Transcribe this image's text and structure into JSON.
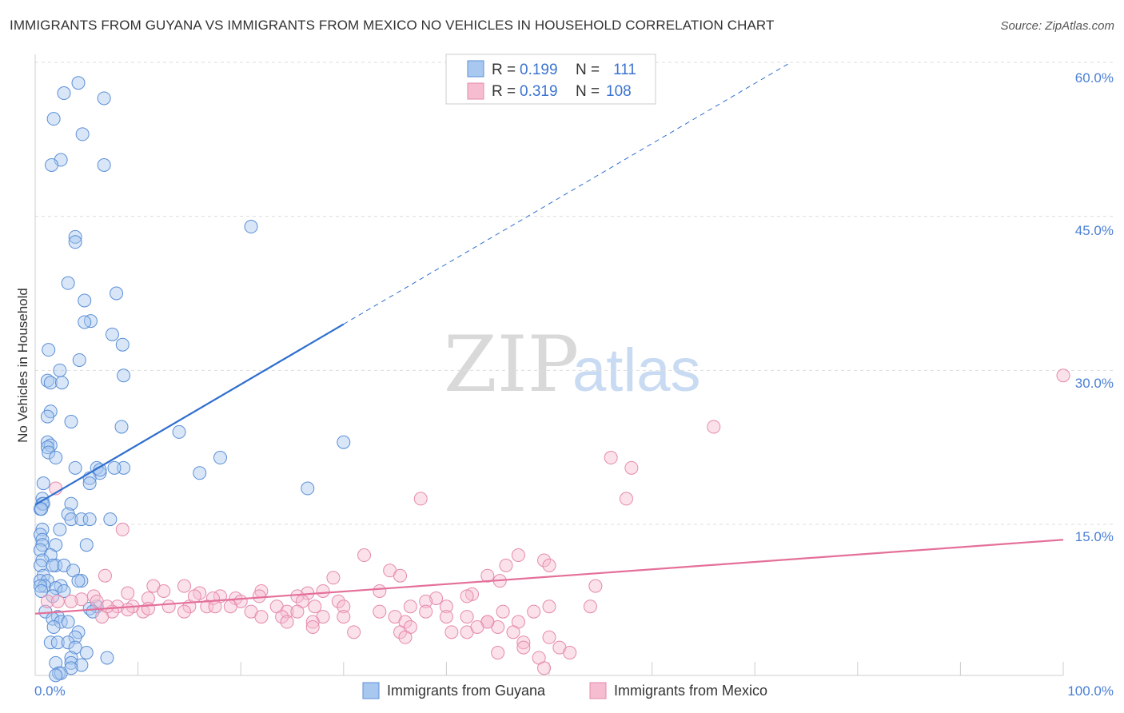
{
  "title": "IMMIGRANTS FROM GUYANA VS IMMIGRANTS FROM MEXICO NO VEHICLES IN HOUSEHOLD CORRELATION CHART",
  "source": "Source: ZipAtlas.com",
  "watermark": {
    "zip": "ZIP",
    "atlas": "atlas"
  },
  "colors": {
    "guyana_fill": "#a9c8f0",
    "guyana_stroke": "#5b8fd6",
    "guyana_line": "#2f6fcf",
    "mexico_fill": "#f6bcd0",
    "mexico_stroke": "#e58aab",
    "mexico_line": "#e4709a",
    "tick_label": "#4a7fd4",
    "grid": "#dddddd"
  },
  "legend": {
    "items": [
      {
        "r_label": "R = ",
        "r_value": "0.199",
        "n_label": "N = ",
        "n_value": "111",
        "series": "guyana"
      },
      {
        "r_label": "R = ",
        "r_value": "0.319",
        "n_label": "N = ",
        "n_value": "108",
        "series": "mexico"
      }
    ]
  },
  "bottom_legend": [
    "Immigrants from Guyana",
    "Immigrants from Mexico"
  ],
  "chart_data": {
    "type": "scatter",
    "title": "IMMIGRANTS FROM GUYANA VS IMMIGRANTS FROM MEXICO NO VEHICLES IN HOUSEHOLD CORRELATION CHART",
    "xlabel": "",
    "ylabel": "No Vehicles in Household",
    "xlim": [
      0,
      100
    ],
    "ylim": [
      0,
      61.5
    ],
    "x_tick_labels": [
      "0.0%",
      "100.0%"
    ],
    "y_ticks": [
      15,
      30,
      45,
      60
    ],
    "y_tick_labels": [
      "15.0%",
      "30.0%",
      "45.0%",
      "60.0%"
    ],
    "grid": true,
    "legend_position": "top-center",
    "series": [
      {
        "name": "Immigrants from Guyana",
        "color": "#a9c8f0",
        "trend": {
          "x": [
            0,
            30
          ],
          "y": [
            16.9,
            34.5
          ],
          "dashed_extension_to": [
            73.5,
            60
          ]
        },
        "points": [
          [
            4.2,
            58.0
          ],
          [
            2.8,
            57.0
          ],
          [
            6.7,
            56.5
          ],
          [
            1.8,
            54.5
          ],
          [
            4.6,
            53.0
          ],
          [
            2.5,
            50.5
          ],
          [
            1.6,
            50.0
          ],
          [
            6.7,
            50.0
          ],
          [
            21.0,
            44.0
          ],
          [
            3.9,
            43.0
          ],
          [
            3.9,
            42.5
          ],
          [
            3.2,
            38.5
          ],
          [
            7.9,
            37.5
          ],
          [
            4.8,
            36.8
          ],
          [
            5.4,
            34.8
          ],
          [
            4.8,
            34.7
          ],
          [
            7.5,
            33.5
          ],
          [
            8.5,
            32.5
          ],
          [
            1.3,
            32.0
          ],
          [
            4.3,
            31.0
          ],
          [
            2.4,
            30.0
          ],
          [
            8.6,
            29.5
          ],
          [
            1.2,
            29.0
          ],
          [
            1.5,
            28.8
          ],
          [
            2.6,
            28.8
          ],
          [
            1.5,
            26.0
          ],
          [
            1.2,
            25.5
          ],
          [
            3.5,
            25.0
          ],
          [
            8.4,
            24.5
          ],
          [
            14.0,
            24.0
          ],
          [
            30.0,
            23.0
          ],
          [
            1.2,
            23.0
          ],
          [
            1.5,
            22.7
          ],
          [
            1.2,
            22.5
          ],
          [
            1.3,
            22.0
          ],
          [
            2.0,
            21.5
          ],
          [
            18.0,
            21.5
          ],
          [
            3.9,
            20.5
          ],
          [
            6.0,
            20.5
          ],
          [
            6.3,
            20.0
          ],
          [
            8.6,
            20.5
          ],
          [
            7.7,
            20.5
          ],
          [
            6.3,
            20.3
          ],
          [
            16.0,
            20.0
          ],
          [
            5.3,
            19.5
          ],
          [
            5.3,
            19.0
          ],
          [
            0.8,
            19.0
          ],
          [
            26.5,
            18.5
          ],
          [
            0.7,
            17.5
          ],
          [
            0.7,
            17.0
          ],
          [
            0.8,
            17.0
          ],
          [
            3.5,
            17.0
          ],
          [
            0.5,
            16.5
          ],
          [
            0.6,
            16.5
          ],
          [
            3.2,
            16.0
          ],
          [
            3.5,
            15.5
          ],
          [
            4.5,
            15.5
          ],
          [
            7.3,
            15.5
          ],
          [
            5.3,
            15.5
          ],
          [
            0.7,
            14.5
          ],
          [
            2.4,
            14.5
          ],
          [
            0.5,
            14.0
          ],
          [
            0.7,
            13.5
          ],
          [
            2.0,
            13.0
          ],
          [
            0.7,
            13.0
          ],
          [
            5.0,
            13.0
          ],
          [
            0.5,
            12.5
          ],
          [
            1.5,
            12.0
          ],
          [
            0.7,
            11.5
          ],
          [
            2.0,
            11.0
          ],
          [
            1.7,
            11.0
          ],
          [
            2.8,
            11.0
          ],
          [
            0.5,
            11.0
          ],
          [
            3.7,
            10.5
          ],
          [
            0.8,
            10.0
          ],
          [
            0.5,
            9.5
          ],
          [
            1.2,
            9.5
          ],
          [
            4.5,
            9.5
          ],
          [
            4.2,
            9.5
          ],
          [
            2.5,
            9.0
          ],
          [
            0.9,
            9.0
          ],
          [
            0.5,
            9.0
          ],
          [
            2.0,
            8.8
          ],
          [
            2.8,
            8.5
          ],
          [
            0.6,
            8.5
          ],
          [
            1.7,
            8.0
          ],
          [
            6.0,
            7.0
          ],
          [
            5.3,
            6.8
          ],
          [
            1.0,
            6.5
          ],
          [
            5.6,
            6.5
          ],
          [
            2.2,
            6.0
          ],
          [
            1.7,
            5.8
          ],
          [
            2.5,
            5.5
          ],
          [
            3.2,
            5.5
          ],
          [
            1.8,
            5.0
          ],
          [
            4.2,
            4.5
          ],
          [
            3.9,
            4.0
          ],
          [
            1.5,
            3.5
          ],
          [
            2.2,
            3.5
          ],
          [
            3.2,
            3.5
          ],
          [
            3.9,
            3.0
          ],
          [
            5.0,
            2.5
          ],
          [
            3.5,
            2.0
          ],
          [
            7.0,
            2.0
          ],
          [
            2.0,
            1.5
          ],
          [
            3.5,
            1.5
          ],
          [
            4.5,
            1.3
          ],
          [
            3.5,
            1.0
          ],
          [
            2.3,
            0.5
          ],
          [
            2.5,
            0.5
          ],
          [
            2.0,
            0.3
          ]
        ]
      },
      {
        "name": "Immigrants from Mexico",
        "color": "#f6bcd0",
        "trend": {
          "x": [
            0,
            100
          ],
          "y": [
            6.3,
            13.5
          ]
        },
        "points": [
          [
            2.0,
            18.5
          ],
          [
            100.0,
            29.5
          ],
          [
            66.0,
            24.5
          ],
          [
            56.0,
            21.5
          ],
          [
            58.0,
            20.5
          ],
          [
            37.5,
            17.5
          ],
          [
            57.5,
            17.5
          ],
          [
            8.5,
            14.5
          ],
          [
            32.0,
            12.0
          ],
          [
            47.0,
            12.0
          ],
          [
            49.5,
            11.5
          ],
          [
            45.8,
            11.0
          ],
          [
            50.0,
            11.0
          ],
          [
            34.5,
            10.5
          ],
          [
            35.5,
            10.0
          ],
          [
            6.8,
            10.0
          ],
          [
            29.0,
            9.8
          ],
          [
            44.0,
            10.0
          ],
          [
            45.2,
            9.5
          ],
          [
            11.5,
            9.0
          ],
          [
            54.5,
            9.0
          ],
          [
            14.5,
            9.0
          ],
          [
            22.0,
            8.5
          ],
          [
            28.0,
            8.5
          ],
          [
            33.5,
            8.5
          ],
          [
            12.5,
            8.5
          ],
          [
            26.5,
            8.3
          ],
          [
            9.0,
            8.3
          ],
          [
            16.0,
            8.3
          ],
          [
            42.5,
            8.2
          ],
          [
            42.0,
            8.0
          ],
          [
            21.8,
            8.0
          ],
          [
            18.0,
            8.0
          ],
          [
            5.7,
            8.0
          ],
          [
            25.5,
            8.0
          ],
          [
            11.0,
            7.8
          ],
          [
            17.3,
            7.8
          ],
          [
            4.5,
            7.7
          ],
          [
            19.5,
            7.8
          ],
          [
            29.5,
            7.5
          ],
          [
            39.0,
            7.8
          ],
          [
            38.0,
            7.5
          ],
          [
            20.0,
            7.5
          ],
          [
            15.0,
            7.0
          ],
          [
            16.7,
            7.0
          ],
          [
            26.0,
            7.5
          ],
          [
            1.2,
            7.5
          ],
          [
            3.5,
            7.5
          ],
          [
            2.2,
            7.5
          ],
          [
            6.0,
            7.5
          ],
          [
            8.0,
            7.0
          ],
          [
            9.5,
            7.0
          ],
          [
            13.0,
            7.0
          ],
          [
            17.5,
            7.0
          ],
          [
            19.0,
            7.0
          ],
          [
            23.5,
            7.0
          ],
          [
            27.2,
            7.0
          ],
          [
            30.0,
            7.0
          ],
          [
            36.5,
            7.0
          ],
          [
            40.0,
            7.0
          ],
          [
            50.0,
            7.0
          ],
          [
            54.0,
            7.0
          ],
          [
            7.5,
            6.5
          ],
          [
            10.5,
            6.5
          ],
          [
            14.5,
            6.5
          ],
          [
            21.0,
            6.5
          ],
          [
            24.5,
            6.5
          ],
          [
            25.5,
            6.5
          ],
          [
            33.5,
            6.5
          ],
          [
            38.0,
            6.5
          ],
          [
            45.5,
            6.5
          ],
          [
            48.5,
            6.5
          ],
          [
            22.0,
            6.0
          ],
          [
            24.0,
            6.0
          ],
          [
            28.0,
            6.0
          ],
          [
            30.0,
            6.0
          ],
          [
            35.0,
            6.0
          ],
          [
            40.0,
            6.0
          ],
          [
            42.0,
            6.0
          ],
          [
            44.0,
            5.5
          ],
          [
            24.5,
            5.5
          ],
          [
            27.0,
            5.5
          ],
          [
            36.0,
            5.5
          ],
          [
            47.0,
            5.5
          ],
          [
            27.0,
            5.0
          ],
          [
            31.0,
            4.5
          ],
          [
            40.5,
            4.5
          ],
          [
            42.0,
            4.5
          ],
          [
            35.5,
            4.5
          ],
          [
            36.5,
            5.0
          ],
          [
            50.0,
            4.0
          ],
          [
            46.5,
            4.5
          ],
          [
            45.0,
            5.0
          ],
          [
            44.0,
            5.5
          ],
          [
            47.5,
            3.5
          ],
          [
            47.5,
            3.0
          ],
          [
            51.0,
            3.0
          ],
          [
            45.0,
            2.5
          ],
          [
            52.0,
            2.5
          ],
          [
            49.0,
            2.0
          ],
          [
            49.5,
            1.0
          ],
          [
            36.0,
            4.0
          ],
          [
            43.0,
            5.0
          ],
          [
            9.0,
            6.7
          ],
          [
            15.5,
            8.0
          ],
          [
            7.0,
            7.0
          ],
          [
            11.0,
            6.8
          ],
          [
            6.5,
            6.0
          ]
        ]
      }
    ]
  }
}
